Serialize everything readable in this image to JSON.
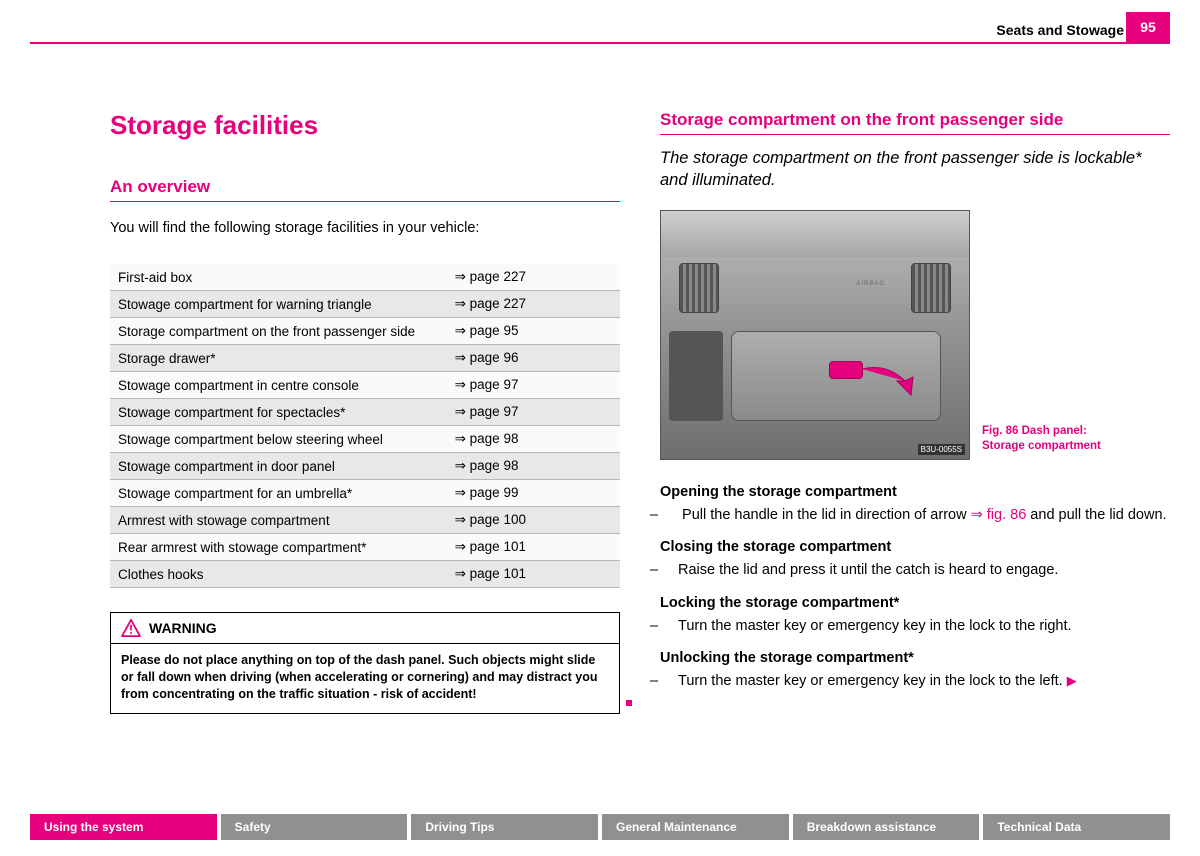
{
  "colors": {
    "accent": "#e6007e",
    "tab_inactive": "#909090",
    "row_alt": "#e8e8e8"
  },
  "header": {
    "section": "Seats and Stowage",
    "page_number": "95"
  },
  "left": {
    "title": "Storage facilities",
    "subhead": "An overview",
    "intro": "You will find the following storage facilities in your vehicle:",
    "table": [
      {
        "item": "First-aid box",
        "ref": "⇒ page 227"
      },
      {
        "item": "Stowage compartment for warning triangle",
        "ref": "⇒ page 227"
      },
      {
        "item": "Storage compartment on the front passenger side",
        "ref": "⇒ page 95"
      },
      {
        "item": "Storage drawer*",
        "ref": "⇒ page 96"
      },
      {
        "item": "Stowage compartment in centre console",
        "ref": "⇒ page 97"
      },
      {
        "item": "Stowage compartment for spectacles*",
        "ref": "⇒ page 97"
      },
      {
        "item": "Stowage compartment below steering wheel",
        "ref": "⇒ page 98"
      },
      {
        "item": "Stowage compartment in door panel",
        "ref": "⇒ page 98"
      },
      {
        "item": "Stowage compartment for an umbrella*",
        "ref": "⇒ page 99"
      },
      {
        "item": "Armrest with stowage compartment",
        "ref": "⇒ page 100"
      },
      {
        "item": "Rear armrest with stowage compartment*",
        "ref": "⇒ page 101"
      },
      {
        "item": "Clothes hooks",
        "ref": "⇒ page 101"
      }
    ],
    "warning_label": "WARNING",
    "warning_body": "Please do not place anything on top of the dash panel. Such objects might slide or fall down when driving (when accelerating or cornering) and may distract you from concentrating on the traffic situation - risk of accident!"
  },
  "right": {
    "heading": "Storage compartment on the front passenger side",
    "subtitle": "The storage compartment on the front passenger side is lockable* and illuminated.",
    "figure": {
      "id": "B3U-0055S",
      "caption_line1": "Fig. 86   Dash panel:",
      "caption_line2": "Storage compartment",
      "airbag_label": "AIRBAG"
    },
    "steps": {
      "open_head": "Opening the storage compartment",
      "open_body_1": "Pull the handle in the lid in direction of arrow ",
      "open_ref": "⇒ fig. 86",
      "open_body_2": " and pull the lid down.",
      "close_head": "Closing the storage compartment",
      "close_body": "Raise the lid and press it until the catch is heard to engage.",
      "lock_head": "Locking the storage compartment*",
      "lock_body": "Turn the master key or emergency key in the lock to the right.",
      "unlock_head": "Unlocking the storage compartment*",
      "unlock_body": "Turn the master key or emergency key in the lock to the left."
    }
  },
  "footer_tabs": [
    {
      "label": "Using the system",
      "active": true
    },
    {
      "label": "Safety",
      "active": false
    },
    {
      "label": "Driving Tips",
      "active": false
    },
    {
      "label": "General Maintenance",
      "active": false
    },
    {
      "label": "Breakdown assistance",
      "active": false
    },
    {
      "label": "Technical Data",
      "active": false
    }
  ]
}
